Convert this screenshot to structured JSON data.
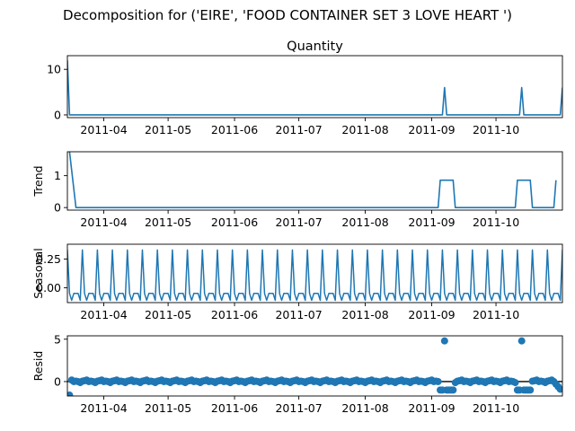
{
  "chart_data": {
    "type": "line",
    "title": "Decomposition for ('EIRE', 'FOOD CONTAINER SET 3 LOVE HEART ')",
    "line_color": "#1f77b4",
    "x_range": [
      "2011-03-15",
      "2011-11-01"
    ],
    "x_ticks": [
      "2011-04",
      "2011-05",
      "2011-06",
      "2011-07",
      "2011-08",
      "2011-09",
      "2011-10"
    ],
    "panels": [
      {
        "key": "observed",
        "title": "Quantity",
        "ylabel": "",
        "ylim": [
          -0.6,
          13
        ],
        "yticks": [
          {
            "v": 0,
            "label": "0"
          },
          {
            "v": 10,
            "label": "10"
          }
        ],
        "kind": "line",
        "points": [
          [
            "2011-03-15",
            12
          ],
          [
            "2011-03-16",
            0
          ],
          [
            "2011-09-06",
            0
          ],
          [
            "2011-09-07",
            6
          ],
          [
            "2011-09-08",
            0
          ],
          [
            "2011-10-12",
            0
          ],
          [
            "2011-10-13",
            6
          ],
          [
            "2011-10-14",
            0
          ],
          [
            "2011-10-31",
            0
          ],
          [
            "2011-11-01",
            6
          ]
        ]
      },
      {
        "key": "trend",
        "title": "",
        "ylabel": "Trend",
        "ylim": [
          -0.08,
          1.75
        ],
        "yticks": [
          {
            "v": 0,
            "label": "0"
          },
          {
            "v": 1,
            "label": "1"
          }
        ],
        "kind": "line",
        "points": [
          [
            "2011-03-16",
            1.75
          ],
          [
            "2011-03-19",
            0.0
          ],
          [
            "2011-09-04",
            0.0
          ],
          [
            "2011-09-05",
            0.857
          ],
          [
            "2011-09-11",
            0.857
          ],
          [
            "2011-09-12",
            0.0
          ],
          [
            "2011-10-10",
            0.0
          ],
          [
            "2011-10-11",
            0.857
          ],
          [
            "2011-10-17",
            0.857
          ],
          [
            "2011-10-18",
            0.0
          ],
          [
            "2011-10-28",
            0.0
          ],
          [
            "2011-10-29",
            0.857
          ]
        ]
      },
      {
        "key": "seasonal",
        "title": "",
        "ylabel": "Seasonal",
        "ylim": [
          -0.13,
          0.38
        ],
        "yticks": [
          {
            "v": 0,
            "label": "0.00"
          },
          {
            "v": 0.25,
            "label": "0.25"
          }
        ],
        "kind": "seasonal",
        "period_days": 7,
        "first_peak": "2011-03-15",
        "pattern": [
          0.33,
          -0.05,
          -0.11,
          -0.05,
          -0.05,
          -0.05,
          -0.11
        ]
      },
      {
        "key": "resid",
        "title": "",
        "ylabel": "Resid",
        "ylim": [
          -1.7,
          5.4
        ],
        "yticks": [
          {
            "v": 0,
            "label": "0"
          },
          {
            "v": 5,
            "label": "5"
          }
        ],
        "kind": "scatter",
        "baseline": 0,
        "points": [
          [
            "2011-03-16",
            -1.6
          ],
          [
            "2011-09-05",
            -1.0
          ],
          [
            "2011-09-06",
            -1.0
          ],
          [
            "2011-09-07",
            4.8
          ],
          [
            "2011-09-08",
            -1.0
          ],
          [
            "2011-09-09",
            -1.0
          ],
          [
            "2011-09-10",
            -1.0
          ],
          [
            "2011-09-11",
            -1.0
          ],
          [
            "2011-10-11",
            -1.0
          ],
          [
            "2011-10-12",
            -1.0
          ],
          [
            "2011-10-13",
            4.8
          ],
          [
            "2011-10-14",
            -1.0
          ],
          [
            "2011-10-15",
            -1.0
          ],
          [
            "2011-10-16",
            -1.0
          ],
          [
            "2011-10-17",
            -1.0
          ],
          [
            "2011-10-29",
            -0.3
          ],
          [
            "2011-10-30",
            -0.6
          ],
          [
            "2011-10-31",
            -0.9
          ]
        ],
        "fill_points": {
          "from": "2011-03-17",
          "to": "2011-10-28",
          "step_days": 1,
          "pattern": [
            0.18,
            0.0,
            0.05,
            0.0,
            -0.12,
            0.05,
            0.1
          ]
        }
      }
    ]
  }
}
